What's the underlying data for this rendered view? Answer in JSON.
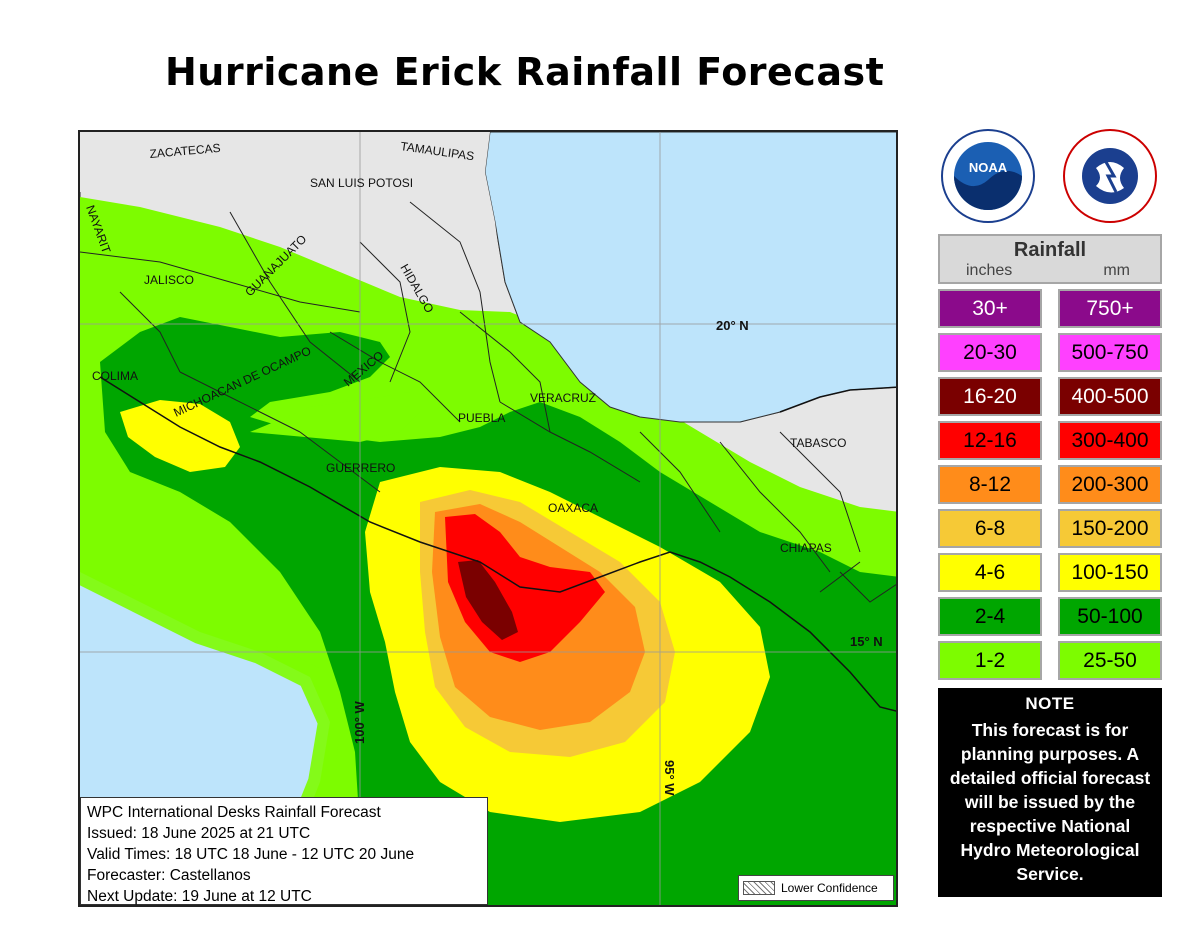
{
  "title": "Hurricane Erick Rainfall Forecast",
  "map": {
    "states": [
      "ZACATECAS",
      "TAMAULIPAS",
      "SAN LUIS POTOSI",
      "NAYARIT",
      "JALISCO",
      "GUANAJUATO",
      "HIDALGO",
      "COLIMA",
      "MICHOACAN DE OCAMPO",
      "MEXICO",
      "VERACRUZ",
      "PUEBLA",
      "TABASCO",
      "GUERRERO",
      "OAXACA",
      "CHIAPAS"
    ],
    "gridlines": {
      "lat_20": "20° N",
      "lat_15": "15° N",
      "lon_100": "100° W",
      "lon_95": "95° W"
    },
    "colors": {
      "ocean": "#bde4fb",
      "land": "#e6e6e6"
    }
  },
  "info": {
    "line1": "WPC International Desks Rainfall Forecast",
    "line2": "Issued: 18 June 2025 at 21 UTC",
    "line3": "Valid Times: 18 UTC 18 June - 12 UTC 20 June",
    "line4": "Forecaster: Castellanos",
    "line5": "Next Update: 19 June at 12 UTC"
  },
  "lower_confidence": "Lower Confidence",
  "logos": {
    "noaa": "noaa-logo",
    "nws": "nws-logo",
    "nws_text": "NATIONAL WEATHER SERVICE",
    "noaa_text": "NOAA"
  },
  "legend": {
    "title": "Rainfall",
    "unit_in": "inches",
    "unit_mm": "mm",
    "rows": [
      {
        "inches": "30+",
        "mm": "750+",
        "color": "#8b0a8b",
        "text": "#ffffff"
      },
      {
        "inches": "20-30",
        "mm": "500-750",
        "color": "#ff40ff",
        "text": "#000000"
      },
      {
        "inches": "16-20",
        "mm": "400-500",
        "color": "#7a0000",
        "text": "#ffffff"
      },
      {
        "inches": "12-16",
        "mm": "300-400",
        "color": "#ff0000",
        "text": "#000000"
      },
      {
        "inches": "8-12",
        "mm": "200-300",
        "color": "#ff8c1a",
        "text": "#000000"
      },
      {
        "inches": "6-8",
        "mm": "150-200",
        "color": "#f6c936",
        "text": "#000000"
      },
      {
        "inches": "4-6",
        "mm": "100-150",
        "color": "#ffff00",
        "text": "#000000"
      },
      {
        "inches": "2-4",
        "mm": "50-100",
        "color": "#00a600",
        "text": "#000000"
      },
      {
        "inches": "1-2",
        "mm": "25-50",
        "color": "#7dfc00",
        "text": "#000000"
      }
    ]
  },
  "note": {
    "heading": "NOTE",
    "body": "This forecast is for planning purposes. A detailed official forecast will be issued by the respective National Hydro Meteorological Service."
  }
}
